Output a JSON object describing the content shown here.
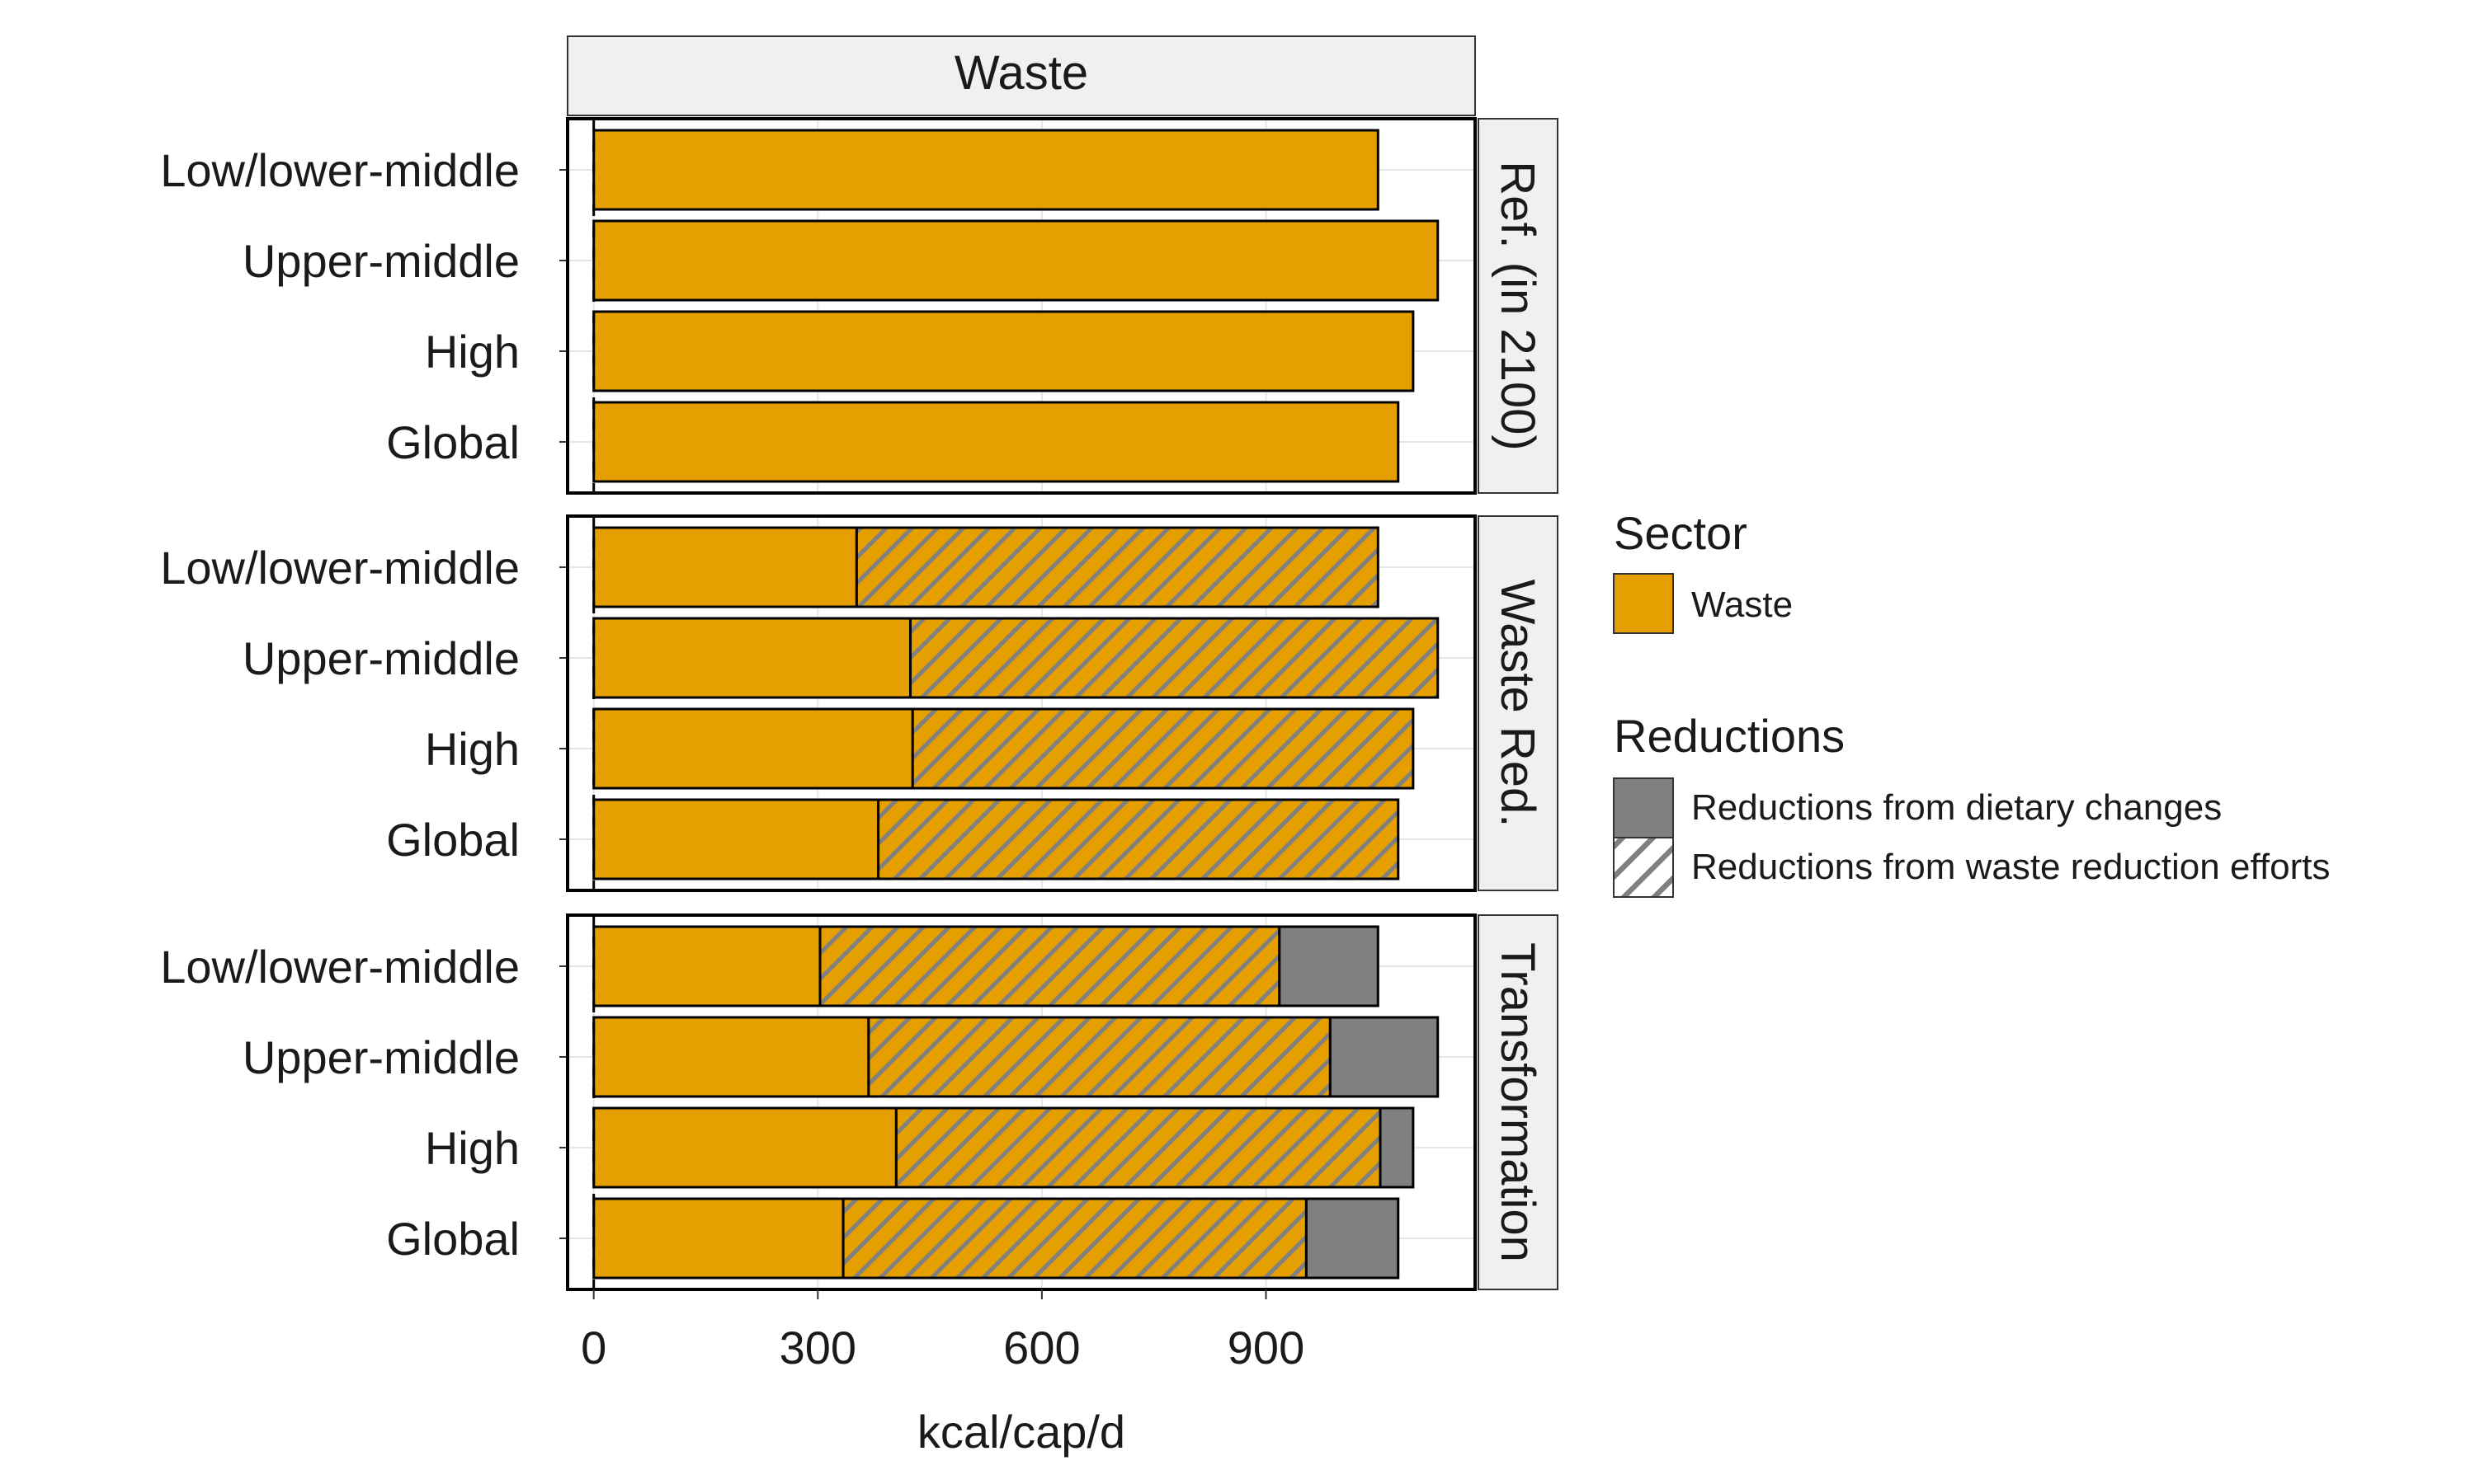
{
  "chart_data": {
    "type": "bar",
    "orientation": "horizontal",
    "stacked": true,
    "column_strip": "Waste",
    "xlabel": "kcal/cap/d",
    "xlim": [
      -35,
      1180
    ],
    "xticks": [
      "0",
      "300",
      "600",
      "900"
    ],
    "xtick_values": [
      0,
      300,
      600,
      900
    ],
    "categories": [
      "Low/lower-middle",
      "Upper-middle",
      "High",
      "Global"
    ],
    "colors": {
      "waste": "#E69F00",
      "dietary": "#808080",
      "hatch": "#808080",
      "strip_fill": "#F0F0F0",
      "grid": "#E6E6E6"
    },
    "panels": [
      {
        "label": "Ref. (in 2100)",
        "rows": [
          {
            "category": "Low/lower-middle",
            "waste": 1050,
            "waste_reduction": 0,
            "dietary_reduction": 0
          },
          {
            "category": "Upper-middle",
            "waste": 1130,
            "waste_reduction": 0,
            "dietary_reduction": 0
          },
          {
            "category": "High",
            "waste": 1097,
            "waste_reduction": 0,
            "dietary_reduction": 0
          },
          {
            "category": "Global",
            "waste": 1077,
            "waste_reduction": 0,
            "dietary_reduction": 0
          }
        ]
      },
      {
        "label": "Waste Red.",
        "rows": [
          {
            "category": "Low/lower-middle",
            "waste": 352,
            "waste_reduction": 698,
            "dietary_reduction": 0
          },
          {
            "category": "Upper-middle",
            "waste": 424,
            "waste_reduction": 706,
            "dietary_reduction": 0
          },
          {
            "category": "High",
            "waste": 427,
            "waste_reduction": 670,
            "dietary_reduction": 0
          },
          {
            "category": "Global",
            "waste": 381,
            "waste_reduction": 696,
            "dietary_reduction": 0
          }
        ]
      },
      {
        "label": "Transformation",
        "rows": [
          {
            "category": "Low/lower-middle",
            "waste": 303,
            "waste_reduction": 615,
            "dietary_reduction": 132
          },
          {
            "category": "Upper-middle",
            "waste": 368,
            "waste_reduction": 618,
            "dietary_reduction": 144
          },
          {
            "category": "High",
            "waste": 405,
            "waste_reduction": 648,
            "dietary_reduction": 44
          },
          {
            "category": "Global",
            "waste": 334,
            "waste_reduction": 620,
            "dietary_reduction": 123
          }
        ]
      }
    ],
    "legend": {
      "placement": "right",
      "groups": [
        {
          "title": "Sector",
          "items": [
            {
              "label": "Waste",
              "style": "fill-waste"
            }
          ]
        },
        {
          "title": "Reductions",
          "items": [
            {
              "label": "Reductions from dietary changes",
              "style": "fill-dietary"
            },
            {
              "label": "Reductions from waste reduction efforts",
              "style": "hatch"
            }
          ]
        }
      ]
    }
  }
}
